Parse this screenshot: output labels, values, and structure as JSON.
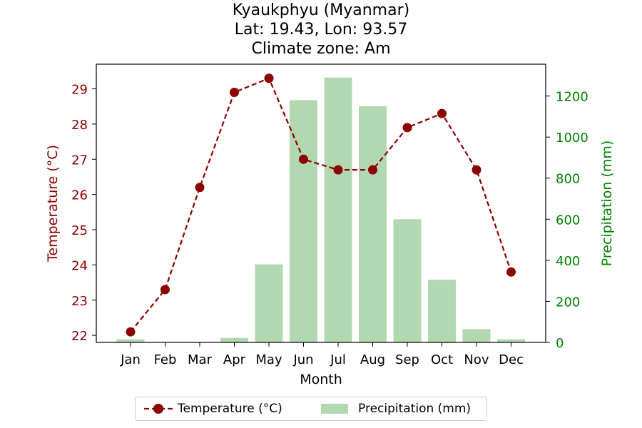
{
  "chart_data": {
    "type": "bar+line",
    "title_lines": [
      "Kyaukphyu (Myanmar)",
      "Lat: 19.43, Lon: 93.57",
      "Climate zone: Am"
    ],
    "xlabel": "Month",
    "ylabel_left": "Temperature (°C)",
    "ylabel_right": "Precipitation (mm)",
    "categories": [
      "Jan",
      "Feb",
      "Mar",
      "Apr",
      "May",
      "Jun",
      "Jul",
      "Aug",
      "Sep",
      "Oct",
      "Nov",
      "Dec"
    ],
    "temperature": {
      "name": "Temperature (°C)",
      "values": [
        22.1,
        23.3,
        26.2,
        28.9,
        29.3,
        27.0,
        26.7,
        26.7,
        27.9,
        28.3,
        26.7,
        23.8
      ],
      "color": "#8b0000",
      "ylim": [
        21.8,
        29.7
      ],
      "ticks": [
        22,
        23,
        24,
        25,
        26,
        27,
        28,
        29
      ]
    },
    "precipitation": {
      "name": "Precipitation (mm)",
      "values": [
        15,
        0,
        0,
        22,
        380,
        1180,
        1290,
        1150,
        600,
        305,
        65,
        15
      ],
      "color": "#b2d8b2",
      "ylim": [
        0,
        1355
      ],
      "ticks": [
        0,
        200,
        400,
        600,
        800,
        1000,
        1200
      ]
    },
    "legend_position": "bottom-center",
    "grid": false
  }
}
